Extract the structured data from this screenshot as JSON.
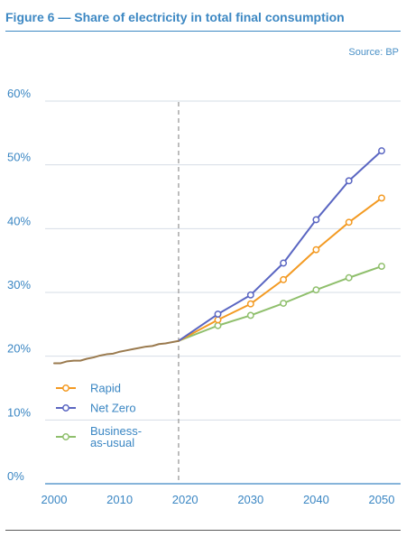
{
  "figure": {
    "title": "Figure 6 — Share of electricity in total final consumption",
    "source": "Source: BP"
  },
  "colors": {
    "accent": "#3d88c3",
    "rapid": "#f39a22",
    "net_zero": "#5a66c2",
    "business_as_usual": "#8fbf6c",
    "history": "#9a7a4e",
    "divider": "#9b9b9b"
  },
  "chart_data": {
    "type": "line",
    "title": "Figure 6 — Share of electricity in total final consumption",
    "xlabel": "",
    "ylabel": "",
    "xlim": [
      2000,
      2050
    ],
    "ylim": [
      0,
      60
    ],
    "x_ticks": [
      2000,
      2010,
      2020,
      2030,
      2040,
      2050
    ],
    "x_tick_labels": [
      "2000",
      "2010",
      "2020",
      "2030",
      "2040",
      "2050"
    ],
    "y_ticks": [
      0,
      10,
      20,
      30,
      40,
      50,
      60
    ],
    "y_tick_labels": [
      "0%",
      "10%",
      "20%",
      "30%",
      "40%",
      "50%",
      "60%"
    ],
    "reference_line": {
      "x": 2019,
      "style": "dashed"
    },
    "grid": "horizontal",
    "legend": "lower-left",
    "history": {
      "x": [
        2000,
        2001,
        2002,
        2003,
        2004,
        2005,
        2006,
        2007,
        2008,
        2009,
        2010,
        2011,
        2012,
        2013,
        2014,
        2015,
        2016,
        2017,
        2018,
        2019
      ],
      "values": [
        18.9,
        18.9,
        19.2,
        19.3,
        19.3,
        19.6,
        19.8,
        20.1,
        20.3,
        20.4,
        20.7,
        20.9,
        21.1,
        21.3,
        21.5,
        21.6,
        21.9,
        22.0,
        22.2,
        22.4
      ]
    },
    "series": [
      {
        "name": "Rapid",
        "x": [
          2019,
          2025,
          2030,
          2035,
          2040,
          2045,
          2050
        ],
        "values": [
          22.4,
          25.7,
          28.2,
          32.0,
          36.7,
          41.0,
          44.8
        ]
      },
      {
        "name": "Net Zero",
        "x": [
          2019,
          2025,
          2030,
          2035,
          2040,
          2045,
          2050
        ],
        "values": [
          22.4,
          26.6,
          29.6,
          34.6,
          41.4,
          47.5,
          52.2
        ]
      },
      {
        "name": "Business-as-usual",
        "x": [
          2019,
          2025,
          2030,
          2035,
          2040,
          2045,
          2050
        ],
        "values": [
          22.4,
          24.8,
          26.4,
          28.3,
          30.4,
          32.3,
          34.1
        ]
      }
    ],
    "legend_entries": [
      {
        "label": "Rapid",
        "series": "Rapid"
      },
      {
        "label": "Net Zero",
        "series": "Net Zero"
      },
      {
        "label_lines": [
          "Business-",
          "as-usual"
        ],
        "series": "Business-as-usual"
      }
    ]
  }
}
